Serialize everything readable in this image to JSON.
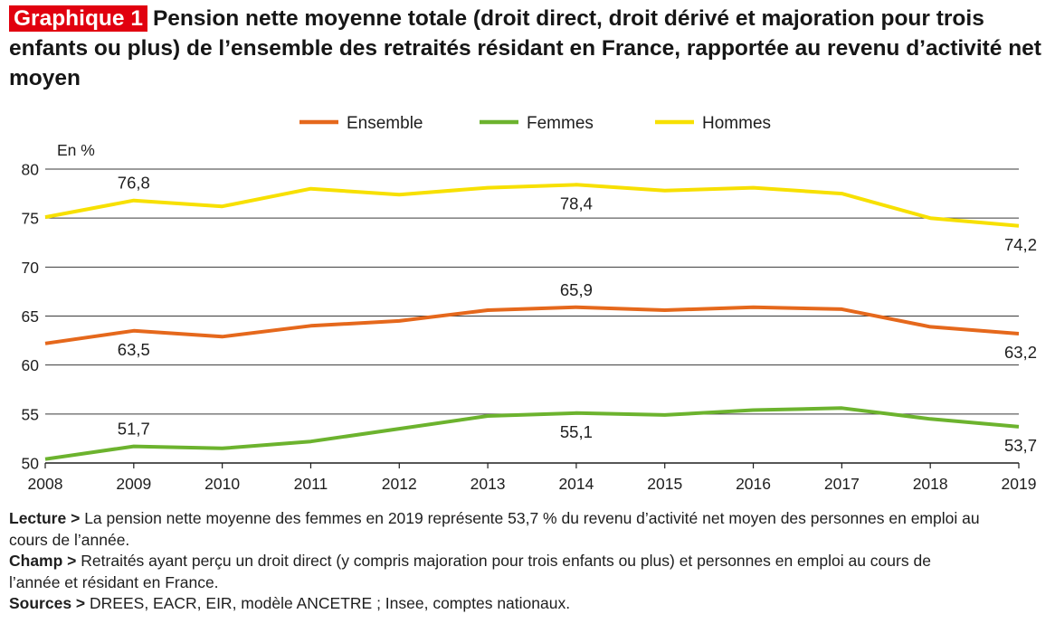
{
  "header": {
    "badge": "Graphique 1",
    "title": "Pension nette moyenne totale (droit direct, droit dérivé et majoration pour trois enfants ou plus) de l’ensemble des retraités résidant en France, rapportée au revenu d’activité net moyen"
  },
  "chart_data": {
    "type": "line",
    "title": "Pension nette moyenne totale (droit direct, droit dérivé et majoration pour trois enfants ou plus) de l’ensemble des retraités résidant en France, rapportée au revenu d’activité net moyen",
    "ylabel": "En %",
    "xlabel": "",
    "x": [
      "2008",
      "2009",
      "2010",
      "2011",
      "2012",
      "2013",
      "2014",
      "2015",
      "2016",
      "2017",
      "2018",
      "2019"
    ],
    "ylim": [
      50,
      80
    ],
    "yticks": [
      50,
      55,
      60,
      65,
      70,
      75,
      80
    ],
    "grid": true,
    "legend_position": "top-center",
    "series": [
      {
        "name": "Ensemble",
        "color": "#e5681c",
        "values": [
          62.2,
          63.5,
          62.9,
          64.0,
          64.5,
          65.6,
          65.9,
          65.6,
          65.9,
          65.7,
          63.9,
          63.2
        ],
        "labels": [
          {
            "x": "2009",
            "text": "63,5",
            "pos": "below"
          },
          {
            "x": "2014",
            "text": "65,9",
            "pos": "above"
          },
          {
            "x": "2019",
            "text": "63,2",
            "pos": "below"
          }
        ]
      },
      {
        "name": "Femmes",
        "color": "#6cb32e",
        "values": [
          50.4,
          51.7,
          51.5,
          52.2,
          53.5,
          54.8,
          55.1,
          54.9,
          55.4,
          55.6,
          54.5,
          53.7
        ],
        "labels": [
          {
            "x": "2009",
            "text": "51,7",
            "pos": "above"
          },
          {
            "x": "2014",
            "text": "55,1",
            "pos": "below"
          },
          {
            "x": "2019",
            "text": "53,7",
            "pos": "below"
          }
        ]
      },
      {
        "name": "Hommes",
        "color": "#f7e000",
        "values": [
          75.1,
          76.8,
          76.2,
          78.0,
          77.4,
          78.1,
          78.4,
          77.8,
          78.1,
          77.5,
          75.0,
          74.2
        ],
        "labels": [
          {
            "x": "2009",
            "text": "76,8",
            "pos": "above"
          },
          {
            "x": "2014",
            "text": "78,4",
            "pos": "below"
          },
          {
            "x": "2019",
            "text": "74,2",
            "pos": "below"
          }
        ]
      }
    ]
  },
  "notes": {
    "lecture_label": "Lecture >",
    "lecture_text": "La pension nette moyenne des femmes en 2019 représente 53,7 % du revenu d’activité net moyen des personnes en emploi au cours de l’année.",
    "champ_label": "Champ >",
    "champ_text": "Retraités ayant perçu un droit direct (y compris majoration pour trois enfants ou plus) et personnes en emploi au cours de l’année et résidant en France.",
    "sources_label": "Sources >",
    "sources_text": "DREES, EACR, EIR, modèle ANCETRE ; Insee, comptes nationaux."
  }
}
